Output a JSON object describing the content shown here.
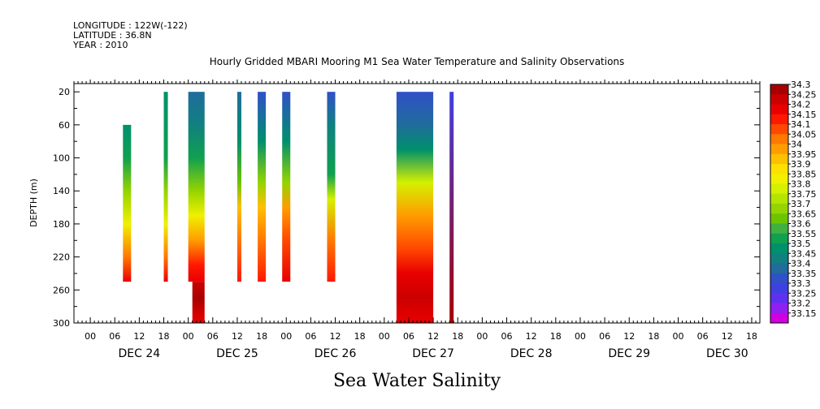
{
  "header": {
    "longitude": "LONGITUDE : 122W(-122)",
    "latitude": "LATITUDE : 36.8N",
    "year": "YEAR : 2010"
  },
  "chart_data": {
    "type": "heatmap",
    "title": "Hourly Gridded MBARI Mooring M1 Sea Water Temperature and Salinity Observations",
    "bottom_title": "Sea Water Salinity",
    "ylabel": "DEPTH (m)",
    "ylim": [
      300,
      0
    ],
    "y_ticks": [
      20,
      60,
      100,
      140,
      180,
      220,
      260,
      300
    ],
    "x_hour_labels": [
      "00",
      "06",
      "12",
      "18",
      "00",
      "06",
      "12",
      "18",
      "00",
      "06",
      "12",
      "18",
      "00",
      "06",
      "12",
      "18",
      "00",
      "06",
      "12",
      "18",
      "00",
      "06",
      "12",
      "18",
      "00",
      "06",
      "12",
      "18"
    ],
    "x_day_labels": [
      "DEC 24",
      "DEC 25",
      "DEC 26",
      "DEC 27",
      "DEC 28",
      "DEC 29",
      "DEC 30"
    ],
    "x_range_hours": [
      -4,
      164
    ],
    "colorbar": {
      "levels": [
        "34.3",
        "34.25",
        "34.2",
        "34.15",
        "34.1",
        "34.05",
        "34",
        "33.95",
        "33.9",
        "33.85",
        "33.8",
        "33.75",
        "33.7",
        "33.65",
        "33.6",
        "33.55",
        "33.5",
        "33.45",
        "33.4",
        "33.35",
        "33.3",
        "33.25",
        "33.2",
        "33.15"
      ],
      "colors": [
        "#a80000",
        "#cc0000",
        "#e80000",
        "#ff1800",
        "#ff4800",
        "#ff7800",
        "#ff9c00",
        "#ffc000",
        "#ffe000",
        "#f0f000",
        "#d4f000",
        "#b4e400",
        "#94d400",
        "#6cc400",
        "#40b040",
        "#10a050",
        "#00906c",
        "#108080",
        "#206c9c",
        "#3050c8",
        "#4040e0",
        "#6030f0",
        "#9020f0",
        "#d000e0"
      ]
    },
    "columns": [
      {
        "start": 8,
        "end": 10,
        "top": 60,
        "bottom": 250,
        "profile": [
          [
            60,
            33.5
          ],
          [
            100,
            33.55
          ],
          [
            140,
            33.7
          ],
          [
            180,
            33.85
          ],
          [
            220,
            34.05
          ],
          [
            250,
            34.2
          ]
        ]
      },
      {
        "start": 18,
        "end": 19,
        "top": 20,
        "bottom": 250,
        "profile": [
          [
            20,
            33.5
          ],
          [
            100,
            33.55
          ],
          [
            140,
            33.7
          ],
          [
            180,
            33.85
          ],
          [
            220,
            34.05
          ],
          [
            250,
            34.2
          ]
        ]
      },
      {
        "start": 24,
        "end": 28,
        "top": 20,
        "bottom": 250,
        "profile": [
          [
            20,
            33.4
          ],
          [
            60,
            33.45
          ],
          [
            100,
            33.55
          ],
          [
            140,
            33.7
          ],
          [
            170,
            33.85
          ],
          [
            200,
            34.0
          ],
          [
            230,
            34.15
          ],
          [
            250,
            34.2
          ]
        ]
      },
      {
        "start": 25,
        "end": 28,
        "top": 250,
        "bottom": 300,
        "profile": [
          [
            250,
            34.25
          ],
          [
            270,
            34.3
          ],
          [
            285,
            34.25
          ],
          [
            300,
            34.2
          ]
        ]
      },
      {
        "start": 36,
        "end": 37,
        "top": 20,
        "bottom": 250,
        "profile": [
          [
            20,
            33.4
          ],
          [
            80,
            33.5
          ],
          [
            130,
            33.65
          ],
          [
            160,
            33.95
          ],
          [
            200,
            34.05
          ],
          [
            250,
            34.15
          ]
        ]
      },
      {
        "start": 41,
        "end": 43,
        "top": 20,
        "bottom": 250,
        "profile": [
          [
            20,
            33.35
          ],
          [
            80,
            33.5
          ],
          [
            130,
            33.7
          ],
          [
            160,
            33.95
          ],
          [
            200,
            34.05
          ],
          [
            250,
            34.15
          ]
        ]
      },
      {
        "start": 47,
        "end": 49,
        "top": 20,
        "bottom": 250,
        "profile": [
          [
            20,
            33.35
          ],
          [
            80,
            33.5
          ],
          [
            130,
            33.7
          ],
          [
            160,
            34.0
          ],
          [
            200,
            34.1
          ],
          [
            250,
            34.2
          ]
        ]
      },
      {
        "start": 58,
        "end": 60,
        "top": 20,
        "bottom": 250,
        "profile": [
          [
            20,
            33.35
          ],
          [
            60,
            33.45
          ],
          [
            120,
            33.55
          ],
          [
            150,
            33.8
          ],
          [
            200,
            34.05
          ],
          [
            250,
            34.15
          ]
        ]
      },
      {
        "start": 75,
        "end": 84,
        "top": 20,
        "bottom": 300,
        "profile": [
          [
            20,
            33.35
          ],
          [
            60,
            33.4
          ],
          [
            90,
            33.5
          ],
          [
            130,
            33.8
          ],
          [
            170,
            34.0
          ],
          [
            210,
            34.1
          ],
          [
            240,
            34.2
          ],
          [
            270,
            34.25
          ],
          [
            300,
            34.2
          ]
        ]
      },
      {
        "start": 88,
        "end": 89,
        "top": 20,
        "bottom": 300,
        "profile": [
          [
            20,
            33.3
          ],
          [
            300,
            34.3
          ]
        ]
      }
    ]
  }
}
